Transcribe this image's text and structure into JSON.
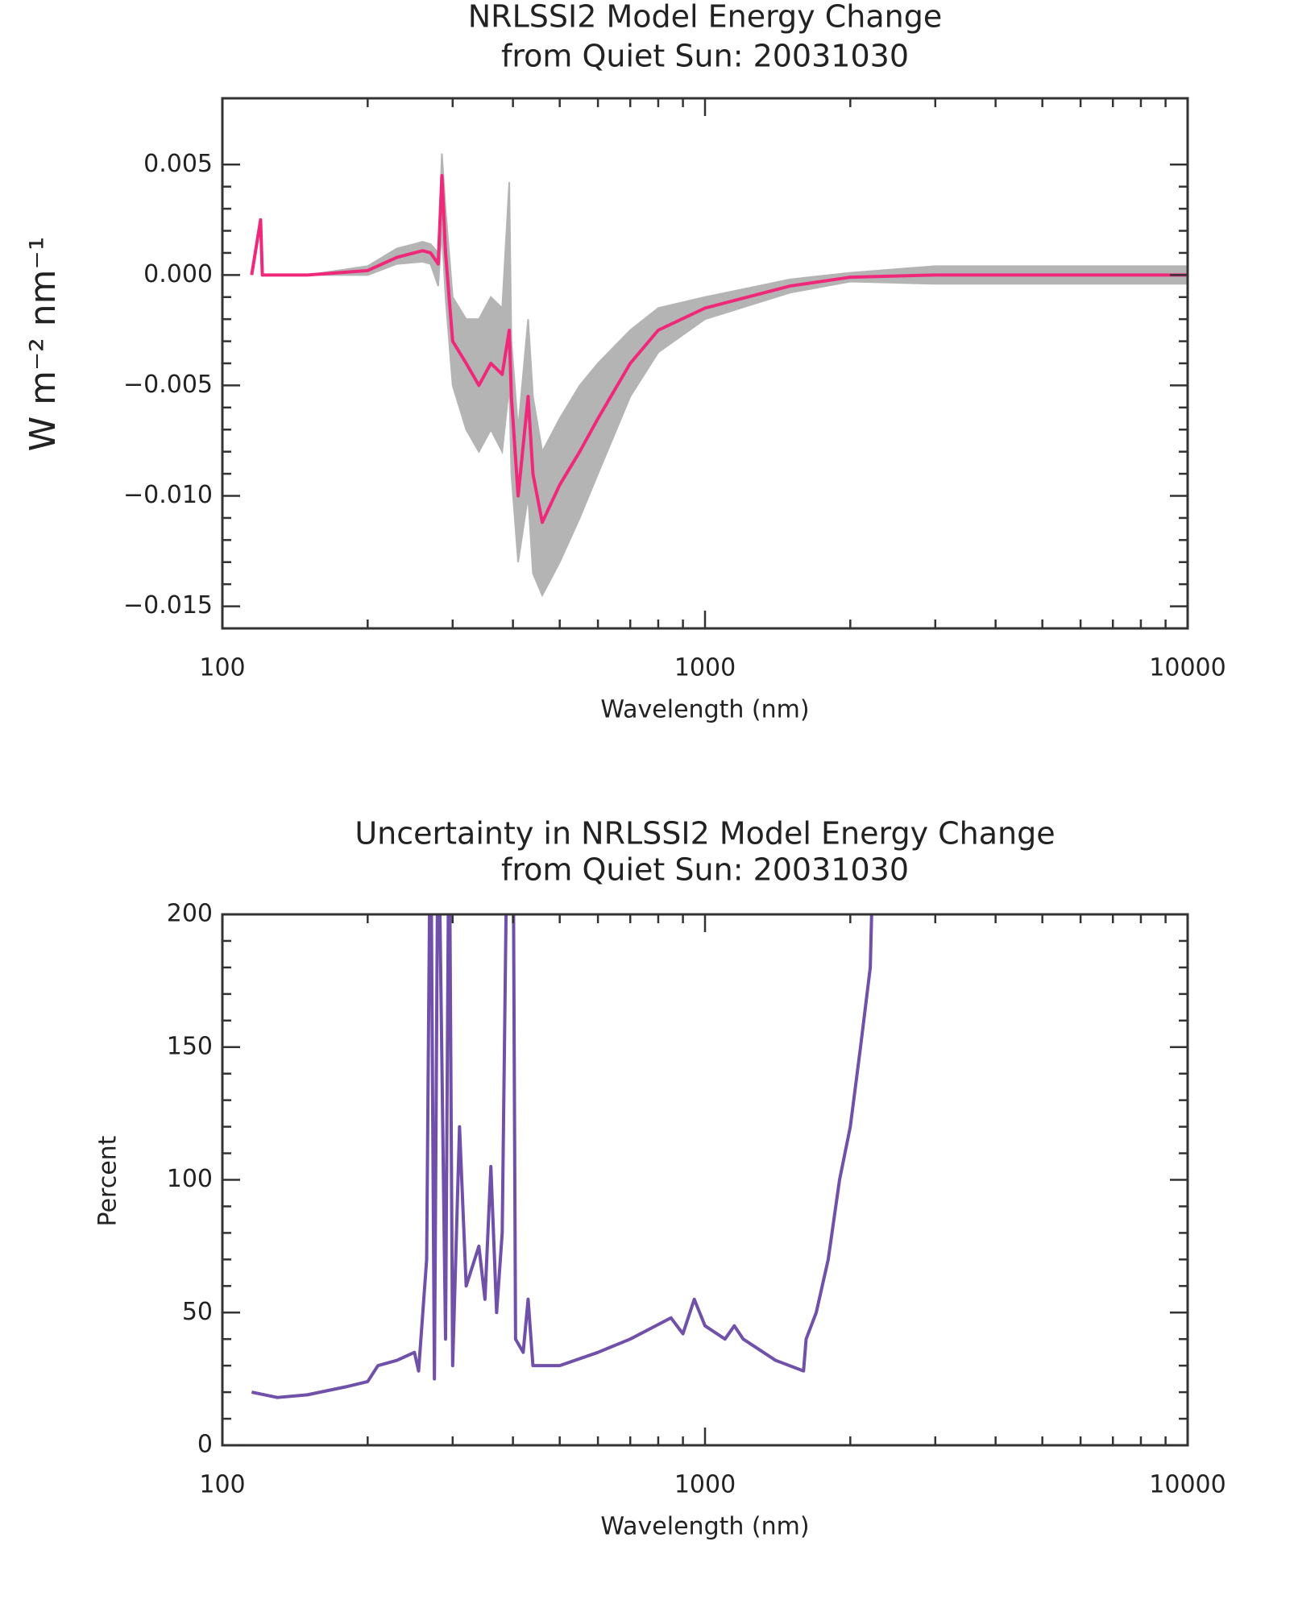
{
  "chart_data": [
    {
      "type": "line",
      "title": [
        "NRLSSI2 Model Energy Change",
        "from Quiet Sun: 20031030"
      ],
      "x_label": "Wavelength (nm)",
      "y_label": "W m⁻² nm⁻¹",
      "x_scale": "log",
      "xlim": [
        100,
        10000
      ],
      "xticks": [
        100,
        1000,
        10000
      ],
      "ylim": [
        -0.016,
        0.008
      ],
      "yticks": [
        {
          "value": -0.015,
          "label": "−0.015"
        },
        {
          "value": -0.01,
          "label": "−0.010"
        },
        {
          "value": -0.005,
          "label": "−0.005"
        },
        {
          "value": 0,
          "label": "0.000"
        },
        0.005
      ],
      "x": [
        115,
        120,
        121,
        150,
        200,
        230,
        260,
        270,
        280,
        285,
        290,
        300,
        320,
        340,
        360,
        380,
        393,
        397,
        410,
        430,
        440,
        460,
        500,
        550,
        600,
        700,
        800,
        1000,
        1500,
        2000,
        3000,
        10000
      ],
      "series": [
        {
          "color": "#f0287a",
          "values": [
            0,
            0.0025,
            0,
            0,
            0.0002,
            0.0008,
            0.0011,
            0.001,
            0.0005,
            0.0045,
            0.001,
            -0.003,
            -0.004,
            -0.005,
            -0.004,
            -0.0045,
            -0.0025,
            -0.0055,
            -0.01,
            -0.0055,
            -0.009,
            -0.0112,
            -0.0095,
            -0.008,
            -0.0065,
            -0.004,
            -0.0025,
            -0.0015,
            -0.0005,
            -0.0001,
            0,
            0
          ]
        }
      ],
      "band": {
        "color": "#b4b4b4",
        "lower": [
          0,
          0.0025,
          0,
          0,
          0,
          0.0005,
          0.0006,
          0.0005,
          -0.0005,
          0.002,
          -0.001,
          -0.005,
          -0.007,
          -0.008,
          -0.007,
          -0.008,
          -0.005,
          -0.009,
          -0.013,
          -0.01,
          -0.0135,
          -0.0145,
          -0.013,
          -0.011,
          -0.009,
          -0.0055,
          -0.0035,
          -0.002,
          -0.0008,
          -0.0003,
          -0.0004,
          -0.0004
        ],
        "upper": [
          0,
          0.0025,
          0,
          0,
          0.0004,
          0.0012,
          0.0015,
          0.0014,
          0.001,
          0.0055,
          0.003,
          -0.001,
          -0.002,
          -0.002,
          -0.001,
          -0.0015,
          0.0042,
          -0.003,
          -0.007,
          -0.002,
          -0.0055,
          -0.008,
          -0.0065,
          -0.005,
          -0.004,
          -0.0025,
          -0.0015,
          -0.001,
          -0.0002,
          0.0001,
          0.0004,
          0.0004
        ]
      }
    },
    {
      "type": "line",
      "title": [
        "Uncertainty in NRLSSI2 Model Energy Change",
        "from Quiet Sun: 20031030"
      ],
      "x_label": "Wavelength (nm)",
      "y_label": "Percent",
      "x_scale": "log",
      "xlim": [
        100,
        10000
      ],
      "xticks": [
        100,
        1000,
        10000
      ],
      "ylim": [
        0,
        200
      ],
      "yticks": [
        0,
        50,
        100,
        150,
        200
      ],
      "x": [
        115,
        130,
        150,
        180,
        200,
        210,
        230,
        250,
        255,
        265,
        270,
        275,
        280,
        290,
        295,
        300,
        310,
        320,
        340,
        350,
        360,
        370,
        380,
        390,
        400,
        405,
        420,
        430,
        440,
        500,
        600,
        700,
        850,
        900,
        950,
        1000,
        1100,
        1150,
        1200,
        1400,
        1600,
        1620,
        1700,
        1800,
        1900,
        2000,
        2100,
        2200,
        2250
      ],
      "series": [
        {
          "color": "#7050a8",
          "values": [
            20,
            18,
            19,
            22,
            24,
            30,
            32,
            35,
            28,
            70,
            250,
            25,
            250,
            40,
            250,
            30,
            120,
            60,
            75,
            55,
            105,
            50,
            80,
            250,
            250,
            40,
            35,
            55,
            30,
            30,
            35,
            40,
            48,
            42,
            55,
            45,
            40,
            45,
            40,
            32,
            28,
            40,
            50,
            70,
            100,
            120,
            150,
            180,
            250
          ]
        }
      ]
    }
  ]
}
